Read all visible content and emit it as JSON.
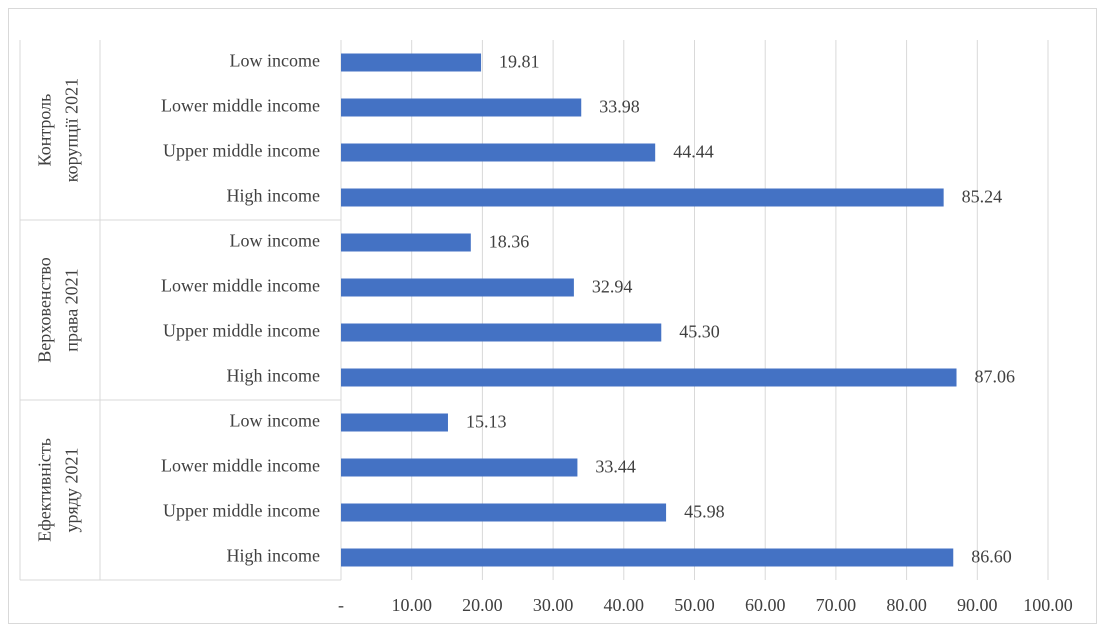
{
  "chart_data": {
    "type": "bar",
    "orientation": "horizontal",
    "color": "#4472c4",
    "grid": true,
    "xlim": [
      0,
      100
    ],
    "xticks": [
      {
        "value": 0,
        "label": "-"
      },
      {
        "value": 10,
        "label": "10.00"
      },
      {
        "value": 20,
        "label": "20.00"
      },
      {
        "value": 30,
        "label": "30.00"
      },
      {
        "value": 40,
        "label": "40.00"
      },
      {
        "value": 50,
        "label": "50.00"
      },
      {
        "value": 60,
        "label": "60.00"
      },
      {
        "value": 70,
        "label": "70.00"
      },
      {
        "value": 80,
        "label": "80.00"
      },
      {
        "value": 90,
        "label": "90.00"
      },
      {
        "value": 100,
        "label": "100.00"
      }
    ],
    "groups": [
      {
        "label": [
          "Контроль",
          "корупції 2021"
        ],
        "categories": [
          "Low income",
          "Lower middle income",
          "Upper middle income",
          "High income"
        ],
        "values": [
          19.81,
          33.98,
          44.44,
          85.24
        ],
        "value_labels": [
          "19.81",
          "33.98",
          "44.44",
          "85.24"
        ]
      },
      {
        "label": [
          "Верховенство",
          "права 2021"
        ],
        "categories": [
          "Low income",
          "Lower middle income",
          "Upper middle income",
          "High income"
        ],
        "values": [
          18.36,
          32.94,
          45.3,
          87.06
        ],
        "value_labels": [
          "18.36",
          "32.94",
          "45.30",
          "87.06"
        ]
      },
      {
        "label": [
          "Ефективність",
          "уряду 2021"
        ],
        "categories": [
          "Low income",
          "Lower middle income",
          "Upper middle income",
          "High income"
        ],
        "values": [
          15.13,
          33.44,
          45.98,
          86.6
        ],
        "value_labels": [
          "15.13",
          "33.44",
          "45.98",
          "86.60"
        ]
      }
    ]
  }
}
